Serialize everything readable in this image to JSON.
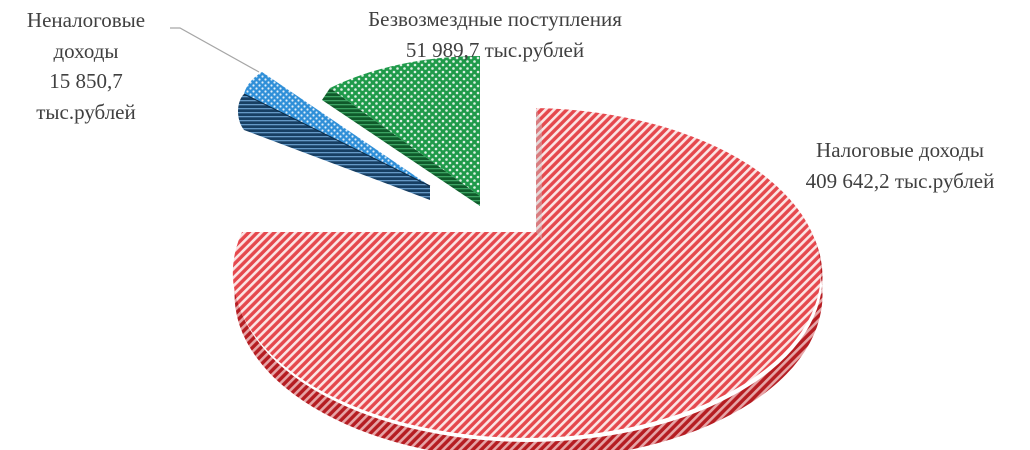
{
  "chart_data": {
    "type": "pie",
    "title": "",
    "slices": [
      {
        "label": "Налоговые доходы",
        "value": 409642.2,
        "value_text": "409 642,2 тыс.рублей",
        "color": "#d9262b",
        "exploded": false
      },
      {
        "label": "Неналоговые доходы",
        "value": 15850.7,
        "value_text": "15 850,7 тыс.рублей",
        "color": "#2f8fd8",
        "exploded": true
      },
      {
        "label": "Безвозмездные поступления",
        "value": 51989.7,
        "value_text": "51 989,7 тыс.рублей",
        "color": "#1f9a4a",
        "exploded": true
      }
    ]
  },
  "labels": {
    "tax": {
      "line1": "Налоговые доходы",
      "line2": "409 642,2 тыс.рублей"
    },
    "nontax": {
      "line1": "Неналоговые",
      "line2": "доходы",
      "line3": "15 850,7",
      "line4": "тыс.рублей"
    },
    "grants": {
      "line1": "Безвозмездные поступления",
      "line2": "51 989,7 тыс.рублей"
    }
  }
}
